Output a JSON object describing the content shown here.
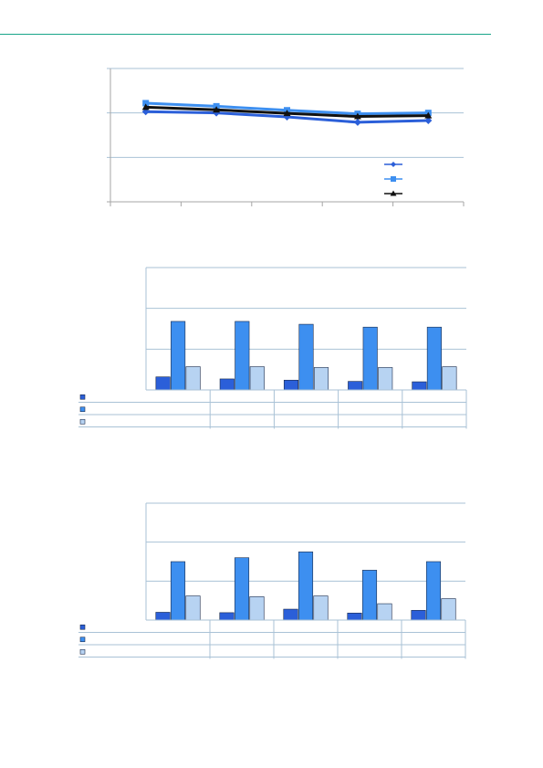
{
  "colors": {
    "header_rule": "#17a589",
    "series_1": "#2b5fd9",
    "series_2": "#3d8ff0",
    "series_3": "#b7d3f2",
    "line_3": "#111111"
  },
  "chart_data": [
    {
      "type": "line",
      "categories": [
        "",
        "",
        "",
        "",
        ""
      ],
      "ylim": [
        0,
        3
      ],
      "grid": true,
      "legend_placement": "bottom-right",
      "series": [
        {
          "values": [
            2.03,
            2.0,
            1.91,
            1.79,
            1.83
          ],
          "marker": "diamond"
        },
        {
          "values": [
            2.22,
            2.15,
            2.06,
            1.98,
            2.0
          ],
          "marker": "square"
        },
        {
          "values": [
            2.13,
            2.07,
            1.99,
            1.92,
            1.94
          ],
          "marker": "triangle"
        }
      ]
    },
    {
      "type": "bar",
      "categories": [
        "",
        "",
        "",
        "",
        ""
      ],
      "ylim": [
        0,
        3
      ],
      "grid": true,
      "legend_placement": "bottom-left",
      "series": [
        {
          "values": [
            0.32,
            0.27,
            0.24,
            0.21,
            0.2
          ]
        },
        {
          "values": [
            1.68,
            1.68,
            1.61,
            1.54,
            1.54
          ]
        },
        {
          "values": [
            0.57,
            0.57,
            0.55,
            0.55,
            0.57
          ]
        }
      ]
    },
    {
      "type": "bar",
      "categories": [
        "",
        "",
        "",
        "",
        ""
      ],
      "ylim": [
        0,
        3
      ],
      "grid": true,
      "legend_placement": "bottom-left",
      "series": [
        {
          "values": [
            0.2,
            0.19,
            0.28,
            0.18,
            0.25
          ]
        },
        {
          "values": [
            1.5,
            1.6,
            1.75,
            1.28,
            1.5
          ]
        },
        {
          "values": [
            0.62,
            0.6,
            0.62,
            0.42,
            0.55
          ]
        }
      ]
    }
  ]
}
